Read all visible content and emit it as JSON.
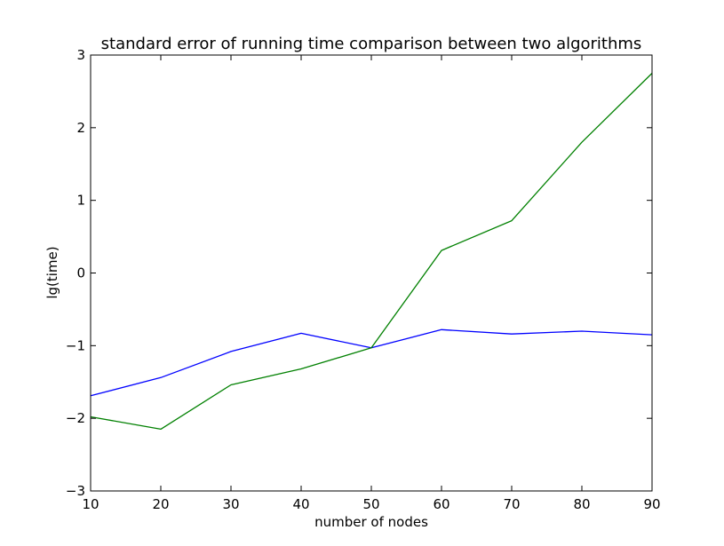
{
  "chart_data": {
    "type": "line",
    "title": "standard error of running time comparison between two algorithms",
    "xlabel": "number of nodes",
    "ylabel": "lg(time)",
    "xlim": [
      10,
      90
    ],
    "ylim": [
      -3,
      3
    ],
    "x": [
      10,
      20,
      30,
      40,
      50,
      60,
      70,
      80,
      90
    ],
    "xticks": [
      "10",
      "20",
      "30",
      "40",
      "50",
      "60",
      "70",
      "80",
      "90"
    ],
    "yticks": [
      "−3",
      "−2",
      "−1",
      "0",
      "1",
      "2",
      "3"
    ],
    "grid": false,
    "series": [
      {
        "color": "#0000ff",
        "values": [
          -1.69,
          -1.44,
          -1.08,
          -0.83,
          -1.03,
          -0.78,
          -0.84,
          -0.8,
          -0.85
        ]
      },
      {
        "color": "#008000",
        "values": [
          -1.98,
          -2.15,
          -1.54,
          -1.32,
          -1.03,
          0.31,
          0.72,
          1.8,
          2.75
        ]
      }
    ]
  }
}
